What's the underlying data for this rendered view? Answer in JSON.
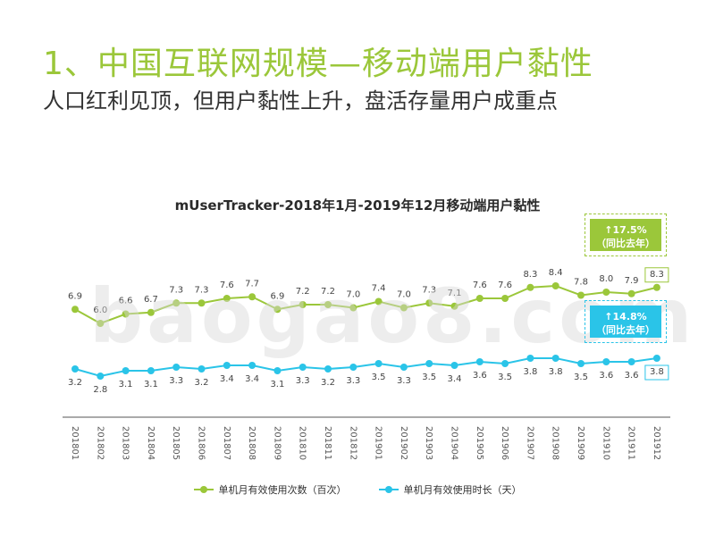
{
  "slide": {
    "title": "1、中国互联网规模—移动端用户黏性",
    "subtitle": "人口红利见顶，但用户黏性上升，盘活存量用户成重点",
    "watermark": "baogao8.com"
  },
  "callouts": {
    "green_line1": "↑17.5%",
    "green_line2": "（同比去年）",
    "blue_line1": "↑14.8%",
    "blue_line2": "（同比去年）"
  },
  "chart_data": {
    "type": "line",
    "title": "mUserTracker-2018年1月-2019年12月移动端用户黏性",
    "categories": [
      "201801",
      "201802",
      "201803",
      "201804",
      "201805",
      "201806",
      "201807",
      "201808",
      "201809",
      "201810",
      "201811",
      "201812",
      "201901",
      "201902",
      "201903",
      "201904",
      "201905",
      "201906",
      "201907",
      "201908",
      "201909",
      "201910",
      "201911",
      "201912"
    ],
    "series": [
      {
        "name": "单机月有效使用次数（百次）",
        "color": "#9bc73a",
        "values": [
          6.9,
          6.0,
          6.6,
          6.7,
          7.3,
          7.3,
          7.6,
          7.7,
          6.9,
          7.2,
          7.2,
          7.0,
          7.4,
          7.0,
          7.3,
          7.1,
          7.6,
          7.6,
          8.3,
          8.4,
          7.8,
          8.0,
          7.9,
          8.3
        ]
      },
      {
        "name": "单机月有效使用时长（天）",
        "color": "#2ac4e8",
        "values": [
          3.2,
          2.8,
          3.1,
          3.1,
          3.3,
          3.2,
          3.4,
          3.4,
          3.1,
          3.3,
          3.2,
          3.3,
          3.5,
          3.3,
          3.5,
          3.4,
          3.6,
          3.5,
          3.8,
          3.8,
          3.5,
          3.6,
          3.6,
          3.8
        ]
      }
    ],
    "grid": false,
    "legend": "bottom"
  }
}
